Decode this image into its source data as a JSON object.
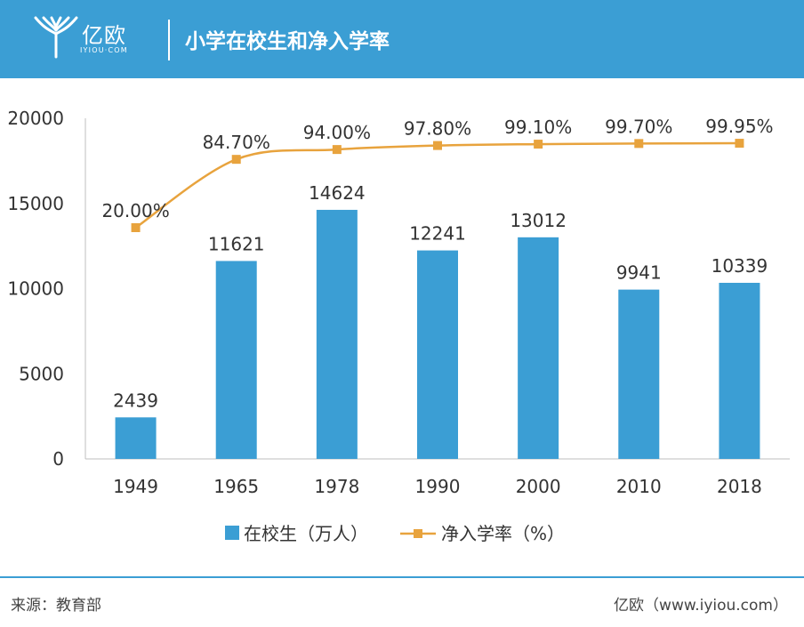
{
  "header": {
    "logo_name": "亿欧",
    "logo_sub": "IYIOU·COM",
    "title": "小学在校生和净入学率"
  },
  "colors": {
    "header_bg": "#3b9ed4",
    "bar": "#3b9ed4",
    "line": "#e8a33d"
  },
  "chart_data": {
    "type": "bar",
    "title": "小学在校生和净入学率",
    "categories": [
      "1949",
      "1965",
      "1978",
      "1990",
      "2000",
      "2010",
      "2018"
    ],
    "ylim": [
      0,
      20000
    ],
    "yticks": [
      "0",
      "5000",
      "10000",
      "15000",
      "20000"
    ],
    "grid": false,
    "legend_position": "bottom",
    "series": [
      {
        "name": "在校生（万人）",
        "type": "bar",
        "values": [
          2439,
          11621,
          14624,
          12241,
          13012,
          9941,
          10339
        ],
        "labels": [
          "2439",
          "11621",
          "14624",
          "12241",
          "13012",
          "9941",
          "10339"
        ]
      },
      {
        "name": "净入学率（%）",
        "type": "line",
        "values": [
          20.0,
          84.7,
          94.0,
          97.8,
          99.1,
          99.7,
          99.95
        ],
        "labels": [
          "20.00%",
          "84.70%",
          "94.00%",
          "97.80%",
          "99.10%",
          "99.70%",
          "99.95%"
        ]
      }
    ]
  },
  "footer": {
    "source": "来源：教育部",
    "site": "亿欧（www.iyiou.com）"
  }
}
